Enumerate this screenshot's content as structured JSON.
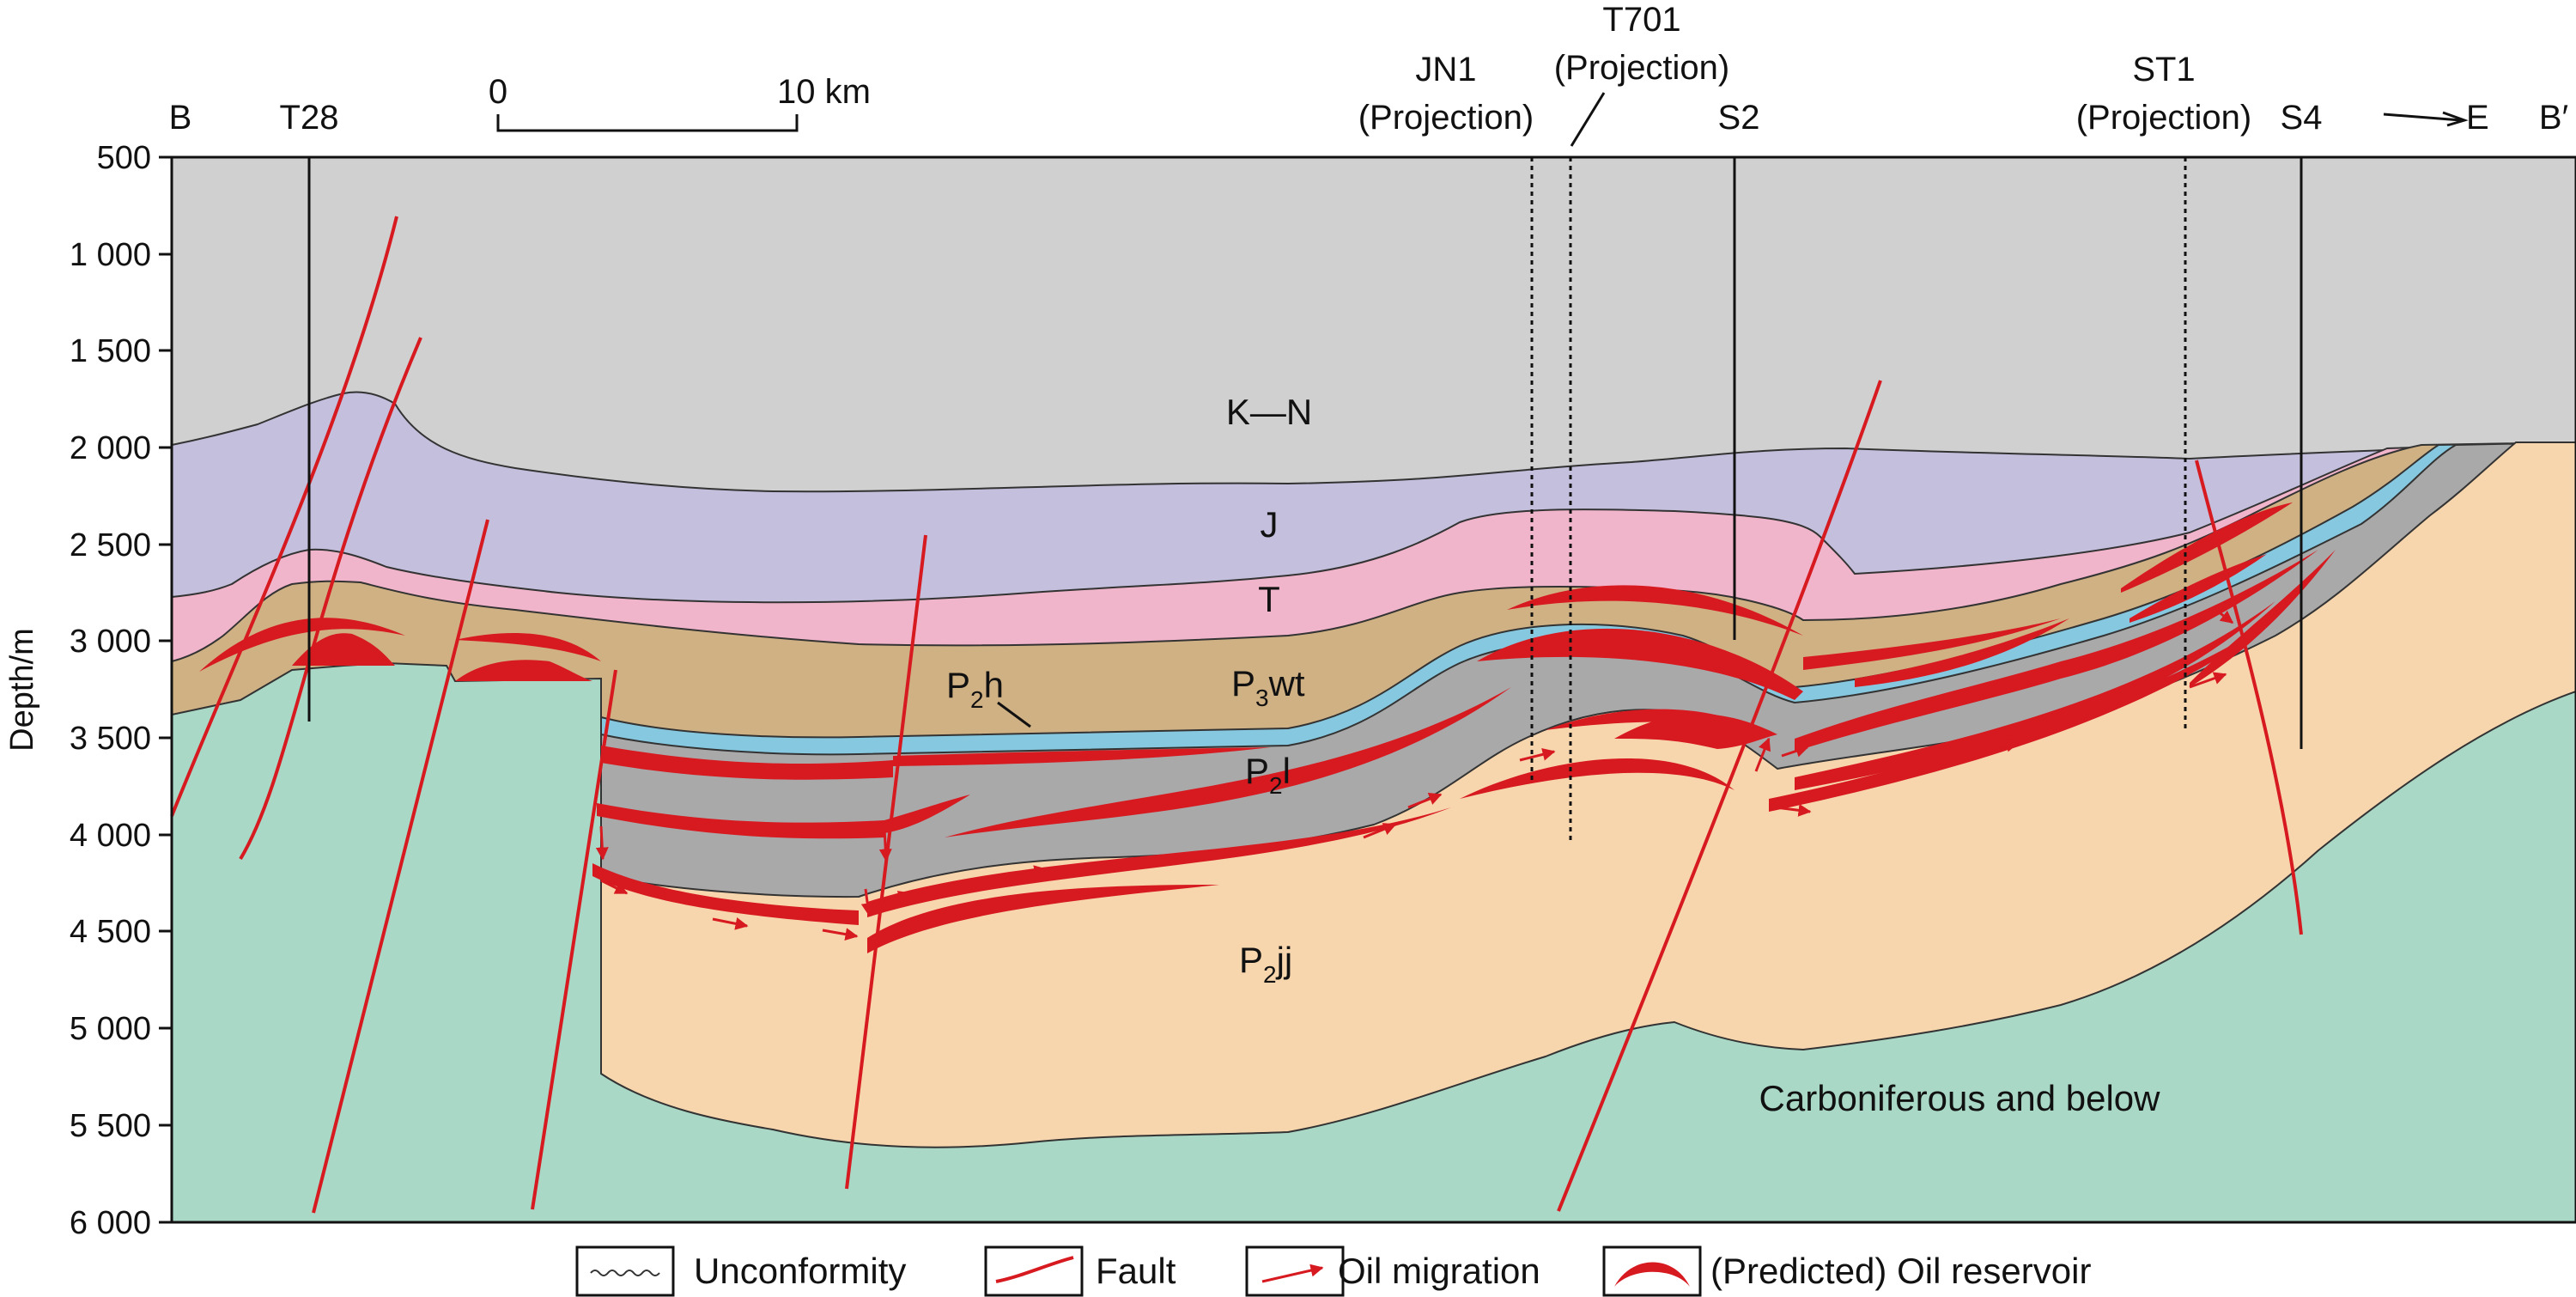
{
  "axis": {
    "ylabel": "Depth/m",
    "ticks": [
      "500",
      "1 000",
      "1 500",
      "2 000",
      "2 500",
      "3 000",
      "3 500",
      "4 000",
      "4 500",
      "5 000",
      "5 500",
      "6 000"
    ],
    "y_range_m": [
      500,
      6000
    ]
  },
  "section": {
    "start_label": "B",
    "end_label": "B′",
    "direction_label": "E"
  },
  "scale_bar": {
    "zero": "0",
    "end": "10 km"
  },
  "wells": [
    {
      "name": "T28"
    },
    {
      "name": "JN1",
      "note": "(Projection)"
    },
    {
      "name": "T701",
      "note": "(Projection)"
    },
    {
      "name": "S2"
    },
    {
      "name": "ST1",
      "note": "(Projection)"
    },
    {
      "name": "S4"
    }
  ],
  "layers": {
    "kn": {
      "label": "K—N",
      "color": "#d0d0d0"
    },
    "j": {
      "label": "J",
      "color": "#c3bfdc"
    },
    "t": {
      "label": "T",
      "color": "#f1b5cb"
    },
    "p3wt": {
      "main": "P",
      "sub": "3",
      "rest": "wt",
      "color": "#d0b184"
    },
    "p2h": {
      "main": "P",
      "sub": "2",
      "rest": "h",
      "color": "#86c8e0"
    },
    "p2l": {
      "main": "P",
      "sub": "2",
      "rest": "l",
      "color": "#a9a9a9"
    },
    "p2jj": {
      "main": "P",
      "sub": "2",
      "rest": "jj",
      "color": "#f7d6ae"
    },
    "carb": {
      "label": "Carboniferous and below",
      "color": "#a9d8c6"
    }
  },
  "colors": {
    "fault": "#d71920",
    "reservoir": "#d71920",
    "outline": "#222222"
  },
  "legend": {
    "unconformity": "Unconformity",
    "fault": "Fault",
    "migration": "Oil migration",
    "reservoir": "(Predicted) Oil reservoir"
  }
}
